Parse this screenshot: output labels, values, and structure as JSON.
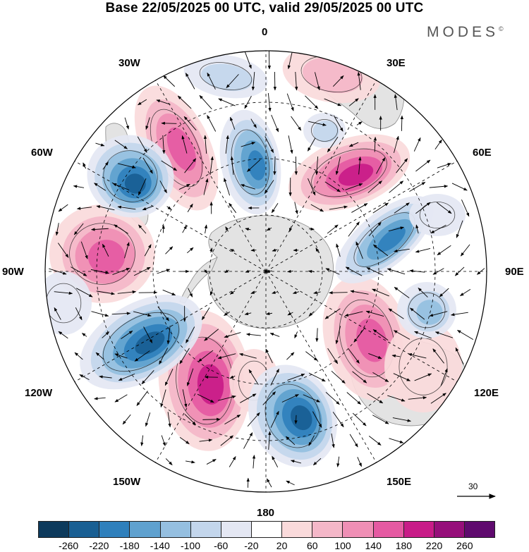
{
  "title": "Base 22/05/2025 00 UTC, valid 29/05/2025 00 UTC",
  "brand": "MODES",
  "brand_mark": "©",
  "longitude_labels": {
    "lon_0": "0",
    "lon_30e": "30E",
    "lon_60e": "60E",
    "lon_90e": "90E",
    "lon_120e": "120E",
    "lon_150e": "150E",
    "lon_180": "180",
    "lon_150w": "150W",
    "lon_120w": "120W",
    "lon_90w": "90W",
    "lon_60w": "60W",
    "lon_30w": "30W"
  },
  "vector_reference": {
    "value": "30"
  },
  "colorbar": {
    "colors": [
      "#0d3a5c",
      "#195f93",
      "#2f80bc",
      "#5fa1cf",
      "#95bfe0",
      "#c3d6ec",
      "#e4e7f3",
      "#ffffff",
      "#fadadb",
      "#f4b7c8",
      "#ef8fb5",
      "#e55aa2",
      "#c81c88",
      "#960f7a",
      "#5f0a6e"
    ],
    "tick_labels": [
      "-260",
      "-220",
      "-180",
      "-140",
      "-100",
      "-60",
      "-20",
      "20",
      "60",
      "100",
      "140",
      "180",
      "220",
      "260"
    ]
  },
  "palette": {
    "land": "#e3e3e3",
    "coast": "#8a8a8a",
    "frame": "#000000"
  }
}
